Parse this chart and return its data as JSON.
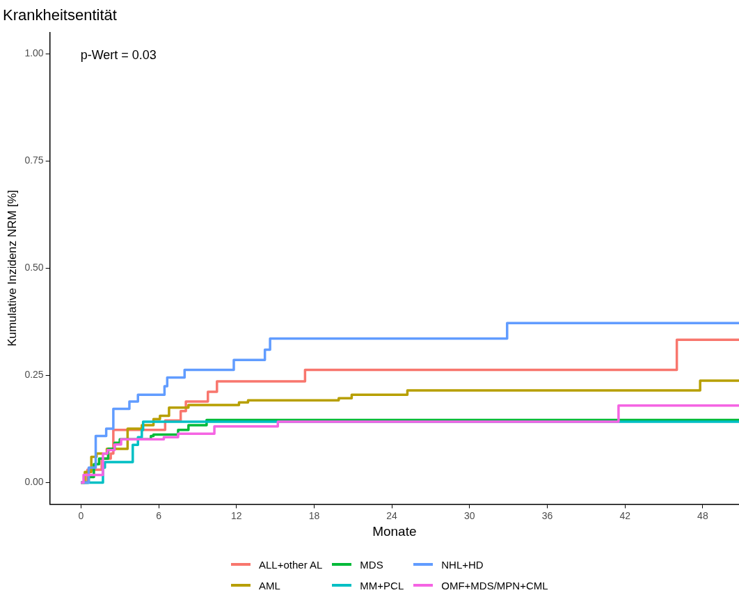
{
  "chart_data": {
    "type": "step",
    "title": "Krankheitsentität",
    "xlabel": "Monate",
    "ylabel": "Kumulative Inzidenz NRM [%]",
    "annotations": [
      "p-Wert = 0.03"
    ],
    "legend": "bottom",
    "grid": false,
    "marker": "none",
    "line_style": "solid",
    "xlim": [
      -2.4,
      50.8
    ],
    "xticks": [
      0,
      6,
      12,
      18,
      24,
      30,
      36,
      42,
      48
    ],
    "ylim": [
      -0.05,
      1.05
    ],
    "yticks": [
      {
        "value": 0,
        "label": "0.00"
      },
      {
        "value": 0.25,
        "label": "0.25"
      },
      {
        "value": 0.5,
        "label": "0.50"
      },
      {
        "value": 0.75,
        "label": "0.75"
      },
      {
        "value": 1,
        "label": "1.00"
      }
    ],
    "series": [
      {
        "name": "ALL+other AL",
        "color": "#f8766d",
        "x": [
          0,
          0.5,
          1.6,
          2.3,
          2.5,
          6.5,
          7.7,
          8.1,
          9.8,
          10.5,
          17.3,
          46.0,
          50.8
        ],
        "values": [
          0,
          0.03,
          0.056,
          0.068,
          0.123,
          0.145,
          0.167,
          0.189,
          0.212,
          0.236,
          0.263,
          0.333,
          0.333
        ]
      },
      {
        "name": "AML",
        "color": "#b79f00",
        "x": [
          0,
          0.3,
          0.8,
          1.2,
          2.0,
          3.6,
          4.7,
          5.6,
          6.1,
          6.8,
          8.3,
          12.2,
          12.9,
          19.9,
          20.9,
          25.2,
          47.8,
          50.8
        ],
        "values": [
          0,
          0.025,
          0.06,
          0.068,
          0.079,
          0.126,
          0.134,
          0.148,
          0.156,
          0.175,
          0.181,
          0.187,
          0.192,
          0.197,
          0.205,
          0.215,
          0.238,
          0.238
        ]
      },
      {
        "name": "MDS",
        "color": "#00ba38",
        "x": [
          0,
          0.6,
          1.0,
          1.4,
          2.1,
          2.6,
          3.0,
          5.4,
          5.6,
          7.5,
          8.3,
          9.7,
          50.8
        ],
        "values": [
          0,
          0.013,
          0.043,
          0.056,
          0.079,
          0.093,
          0.101,
          0.109,
          0.112,
          0.123,
          0.134,
          0.146,
          0.146
        ]
      },
      {
        "name": "MM+PCL",
        "color": "#00bfc4",
        "x": [
          0,
          1.0,
          1.7,
          1.85,
          4.0,
          4.4,
          4.7,
          4.8,
          50.8
        ],
        "values": [
          0,
          0,
          0.035,
          0.048,
          0.088,
          0.106,
          0.123,
          0.142,
          0.142
        ]
      },
      {
        "name": "NHL+HD",
        "color": "#619cff",
        "x": [
          0,
          0.6,
          1.14,
          1.95,
          2.5,
          3.74,
          4.4,
          6.45,
          6.66,
          8.0,
          11.8,
          14.2,
          14.6,
          32.9,
          50.8
        ],
        "values": [
          0,
          0.035,
          0.109,
          0.126,
          0.172,
          0.189,
          0.205,
          0.225,
          0.245,
          0.263,
          0.286,
          0.31,
          0.336,
          0.372,
          0.372
        ]
      },
      {
        "name": "OMF+MDS/MPN+CML",
        "color": "#f564e3",
        "x": [
          0,
          0.2,
          1.7,
          2.05,
          2.6,
          3.1,
          6.4,
          7.5,
          10.3,
          15.2,
          41.5,
          50.8
        ],
        "values": [
          0,
          0.018,
          0.068,
          0.076,
          0.089,
          0.101,
          0.106,
          0.114,
          0.131,
          0.142,
          0.18,
          0.18
        ]
      }
    ]
  }
}
